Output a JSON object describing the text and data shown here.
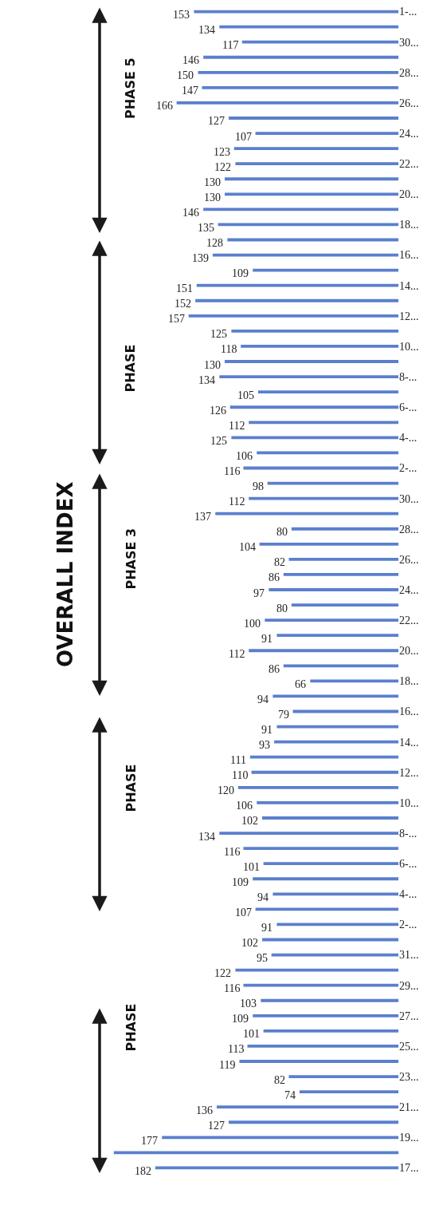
{
  "chart_data": {
    "type": "bar",
    "orientation": "horizontal",
    "title": "OVERALL INDEX",
    "annotations": [
      "PHASE 5",
      "PHASE",
      "PHASE 3",
      "PHASE",
      "PHASE"
    ],
    "categories": [
      "1-...",
      null,
      "30...",
      null,
      "28...",
      null,
      "26...",
      null,
      "24...",
      null,
      "22...",
      null,
      "20...",
      null,
      "18...",
      null,
      "16...",
      null,
      "14...",
      null,
      "12...",
      null,
      "10...",
      null,
      "8-...",
      null,
      "6-...",
      null,
      "4-...",
      null,
      "2-...",
      null,
      "30...",
      null,
      "28...",
      null,
      "26...",
      null,
      "24...",
      null,
      "22...",
      null,
      "20...",
      null,
      "18...",
      null,
      "16...",
      null,
      "14...",
      null,
      "12...",
      null,
      "10...",
      null,
      "8-...",
      null,
      "6-...",
      null,
      "4-...",
      null,
      "2-...",
      null,
      "31...",
      null,
      "29...",
      null,
      "27...",
      null,
      "25...",
      null,
      "23...",
      null,
      "21...",
      null,
      "19...",
      null,
      "17..."
    ],
    "values": [
      153,
      134,
      117,
      146,
      150,
      147,
      166,
      127,
      107,
      123,
      122,
      130,
      130,
      146,
      135,
      128,
      139,
      109,
      151,
      152,
      157,
      125,
      118,
      130,
      134,
      105,
      126,
      112,
      125,
      106,
      116,
      98,
      112,
      137,
      80,
      104,
      82,
      86,
      97,
      80,
      100,
      91,
      112,
      86,
      66,
      94,
      79,
      91,
      93,
      111,
      110,
      120,
      106,
      102,
      134,
      116,
      101,
      109,
      94,
      107,
      91,
      102,
      95,
      122,
      116,
      103,
      109,
      101,
      113,
      119,
      82,
      74,
      136,
      127,
      177,
      213,
      182
    ],
    "value_labels": [
      "153",
      "134",
      "117",
      "146",
      "150",
      "147",
      "166",
      "127",
      "107",
      "123",
      "122",
      "130",
      "130",
      "146",
      "135",
      "128",
      "139",
      "109",
      "151",
      "152",
      "157",
      "125",
      "118",
      "130",
      "134",
      "105",
      "126",
      "112",
      "125",
      "106",
      "116",
      "98",
      "112",
      "137",
      "80",
      "104",
      "82",
      "86",
      "97",
      "80",
      "100",
      "91",
      "112",
      "86",
      "66",
      "94",
      "79",
      "91",
      "93",
      "111",
      "110",
      "120",
      "106",
      "102",
      "134",
      "116",
      "101",
      "109",
      "94",
      "107",
      "91",
      "102",
      "95",
      "122",
      "116",
      "103",
      "109",
      "101",
      "113",
      "119",
      "82",
      "74",
      "136",
      "127",
      "177",
      null,
      "182"
    ],
    "color": "#5b7fcd"
  }
}
